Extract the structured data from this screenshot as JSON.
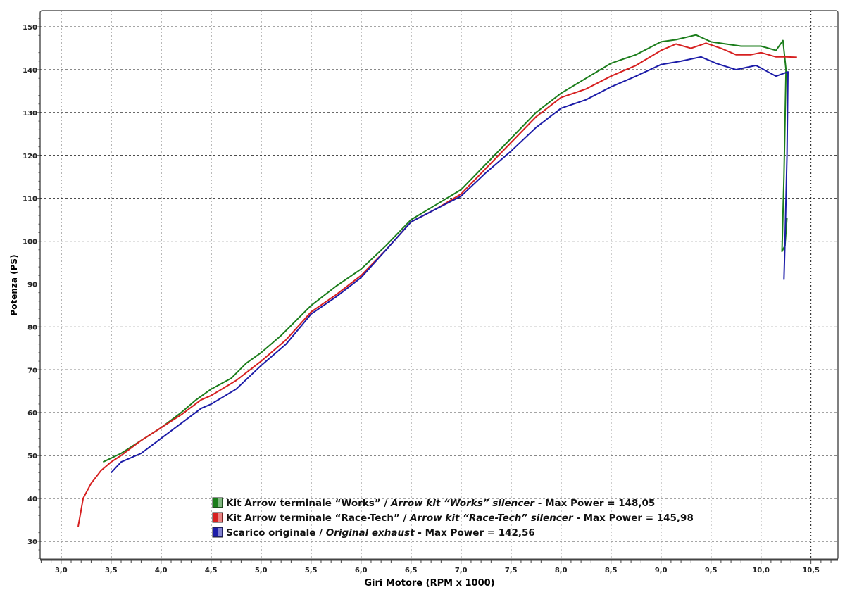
{
  "chart_data": {
    "type": "line",
    "xlabel": "Giri Motore (RPM x 1000)",
    "ylabel": "Potenza (PS)",
    "xlim": [
      2.79,
      10.77
    ],
    "ylim": [
      25.7,
      153.8
    ],
    "xticks": [
      "3,0",
      "3,5",
      "4,0",
      "4,5",
      "5,0",
      "5,5",
      "6,0",
      "6,5",
      "7,0",
      "7,5",
      "8,0",
      "8,5",
      "9,0",
      "9,5",
      "10,0",
      "10,5"
    ],
    "xtick_values": [
      3,
      3.5,
      4,
      4.5,
      5,
      5.5,
      6,
      6.5,
      7,
      7.5,
      8,
      8.5,
      9,
      9.5,
      10,
      10.5
    ],
    "yticks": [
      30,
      40,
      50,
      60,
      70,
      80,
      90,
      100,
      110,
      120,
      130,
      140,
      150
    ],
    "grid": true,
    "legend_placement": "bottom-center",
    "series": [
      {
        "name": "Kit Arrow terminale “Works” / Arrow kit “Works” silencer - Max Power = 148,05",
        "legend": {
          "normal": "Kit Arrow terminale “Works” / ",
          "italic": "Arrow kit “Works” silencer",
          "suffix": " - Max Power = 148,05"
        },
        "color": "#1b7d1b",
        "points": [
          [
            3.42,
            48.5
          ],
          [
            3.6,
            50.5
          ],
          [
            3.8,
            53.5
          ],
          [
            4.0,
            56.5
          ],
          [
            4.2,
            60
          ],
          [
            4.35,
            63
          ],
          [
            4.5,
            65.5
          ],
          [
            4.7,
            68
          ],
          [
            4.85,
            71.5
          ],
          [
            5.0,
            74
          ],
          [
            5.2,
            78
          ],
          [
            5.5,
            85
          ],
          [
            5.75,
            89.5
          ],
          [
            6.0,
            93.5
          ],
          [
            6.25,
            99
          ],
          [
            6.5,
            105
          ],
          [
            6.75,
            108.5
          ],
          [
            7.0,
            112
          ],
          [
            7.25,
            118
          ],
          [
            7.5,
            124
          ],
          [
            7.75,
            130
          ],
          [
            8.0,
            134.5
          ],
          [
            8.25,
            138
          ],
          [
            8.5,
            141.5
          ],
          [
            8.75,
            143.5
          ],
          [
            9.0,
            146.5
          ],
          [
            9.15,
            147
          ],
          [
            9.35,
            148.1
          ],
          [
            9.5,
            146.5
          ],
          [
            9.65,
            146
          ],
          [
            9.8,
            145.5
          ],
          [
            10.0,
            145.5
          ],
          [
            10.15,
            144.5
          ],
          [
            10.22,
            146.8
          ],
          [
            10.25,
            140
          ],
          [
            10.23,
            115
          ],
          [
            10.21,
            97.6
          ],
          [
            10.24,
            99
          ],
          [
            10.26,
            105.5
          ]
        ]
      },
      {
        "name": "Kit Arrow terminale “Race-Tech” / Arrow kit “Race-Tech” silencer - Max Power = 145,98",
        "legend": {
          "normal": "Kit Arrow terminale “Race-Tech” / ",
          "italic": "Arrow kit “Race-Tech” silencer",
          "suffix": " - Max Power = 145,98"
        },
        "color": "#d62020",
        "points": [
          [
            3.17,
            33.4
          ],
          [
            3.22,
            40
          ],
          [
            3.3,
            43.5
          ],
          [
            3.4,
            46.5
          ],
          [
            3.5,
            48.5
          ],
          [
            3.6,
            50
          ],
          [
            3.8,
            53.5
          ],
          [
            4.0,
            56.5
          ],
          [
            4.2,
            59.5
          ],
          [
            4.4,
            63
          ],
          [
            4.5,
            64
          ],
          [
            4.75,
            67.5
          ],
          [
            5.0,
            72
          ],
          [
            5.25,
            77
          ],
          [
            5.5,
            83.5
          ],
          [
            5.75,
            87.5
          ],
          [
            6.0,
            92
          ],
          [
            6.25,
            98
          ],
          [
            6.5,
            104.5
          ],
          [
            6.75,
            107.5
          ],
          [
            7.0,
            111
          ],
          [
            7.25,
            117
          ],
          [
            7.5,
            123
          ],
          [
            7.75,
            129
          ],
          [
            8.0,
            133.5
          ],
          [
            8.25,
            135.5
          ],
          [
            8.5,
            138.5
          ],
          [
            8.75,
            141
          ],
          [
            9.0,
            144.5
          ],
          [
            9.15,
            146
          ],
          [
            9.3,
            145
          ],
          [
            9.45,
            146.2
          ],
          [
            9.6,
            145
          ],
          [
            9.75,
            143.5
          ],
          [
            9.9,
            143.5
          ],
          [
            10.0,
            144
          ],
          [
            10.15,
            143
          ],
          [
            10.25,
            143
          ],
          [
            10.36,
            142.9
          ]
        ]
      },
      {
        "name": "Scarico originale / Original exhaust - Max Power = 142,56",
        "legend": {
          "normal": "Scarico originale / ",
          "italic": "Original exhaust",
          "suffix": " - Max Power = 142,56"
        },
        "color": "#1c1ca8",
        "points": [
          [
            3.5,
            46
          ],
          [
            3.6,
            48.5
          ],
          [
            3.8,
            50.5
          ],
          [
            4.0,
            54
          ],
          [
            4.2,
            57.5
          ],
          [
            4.4,
            61
          ],
          [
            4.5,
            62
          ],
          [
            4.75,
            65.5
          ],
          [
            5.0,
            71
          ],
          [
            5.25,
            76
          ],
          [
            5.5,
            83
          ],
          [
            5.75,
            87
          ],
          [
            6.0,
            91.5
          ],
          [
            6.25,
            98
          ],
          [
            6.5,
            104.5
          ],
          [
            6.75,
            107.5
          ],
          [
            7.0,
            110.5
          ],
          [
            7.25,
            116
          ],
          [
            7.5,
            121
          ],
          [
            7.75,
            126.5
          ],
          [
            8.0,
            131
          ],
          [
            8.25,
            133
          ],
          [
            8.5,
            136
          ],
          [
            8.75,
            138.5
          ],
          [
            9.0,
            141.2
          ],
          [
            9.2,
            142
          ],
          [
            9.4,
            143
          ],
          [
            9.55,
            141.5
          ],
          [
            9.75,
            140
          ],
          [
            9.95,
            141
          ],
          [
            10.15,
            138.5
          ],
          [
            10.27,
            139.5
          ],
          [
            10.26,
            120
          ],
          [
            10.24,
            100
          ],
          [
            10.23,
            91
          ]
        ]
      }
    ]
  }
}
